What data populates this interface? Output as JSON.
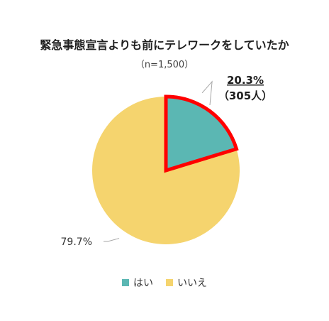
{
  "chart_data": {
    "type": "pie",
    "title": "緊急事態宣言よりも前にテレワークをしていたか",
    "subtitle": "（n=1,500）",
    "slices": [
      {
        "name": "はい",
        "value": 20.3,
        "label": "20.3%",
        "sublabel": "（305人）",
        "color": "#5bb7b3",
        "highlight": true,
        "highlight_color": "#ff0000"
      },
      {
        "name": "いいえ",
        "value": 79.7,
        "label": "79.7%",
        "sublabel": "",
        "color": "#f5d46e",
        "highlight": false
      }
    ],
    "legend_position": "bottom"
  }
}
